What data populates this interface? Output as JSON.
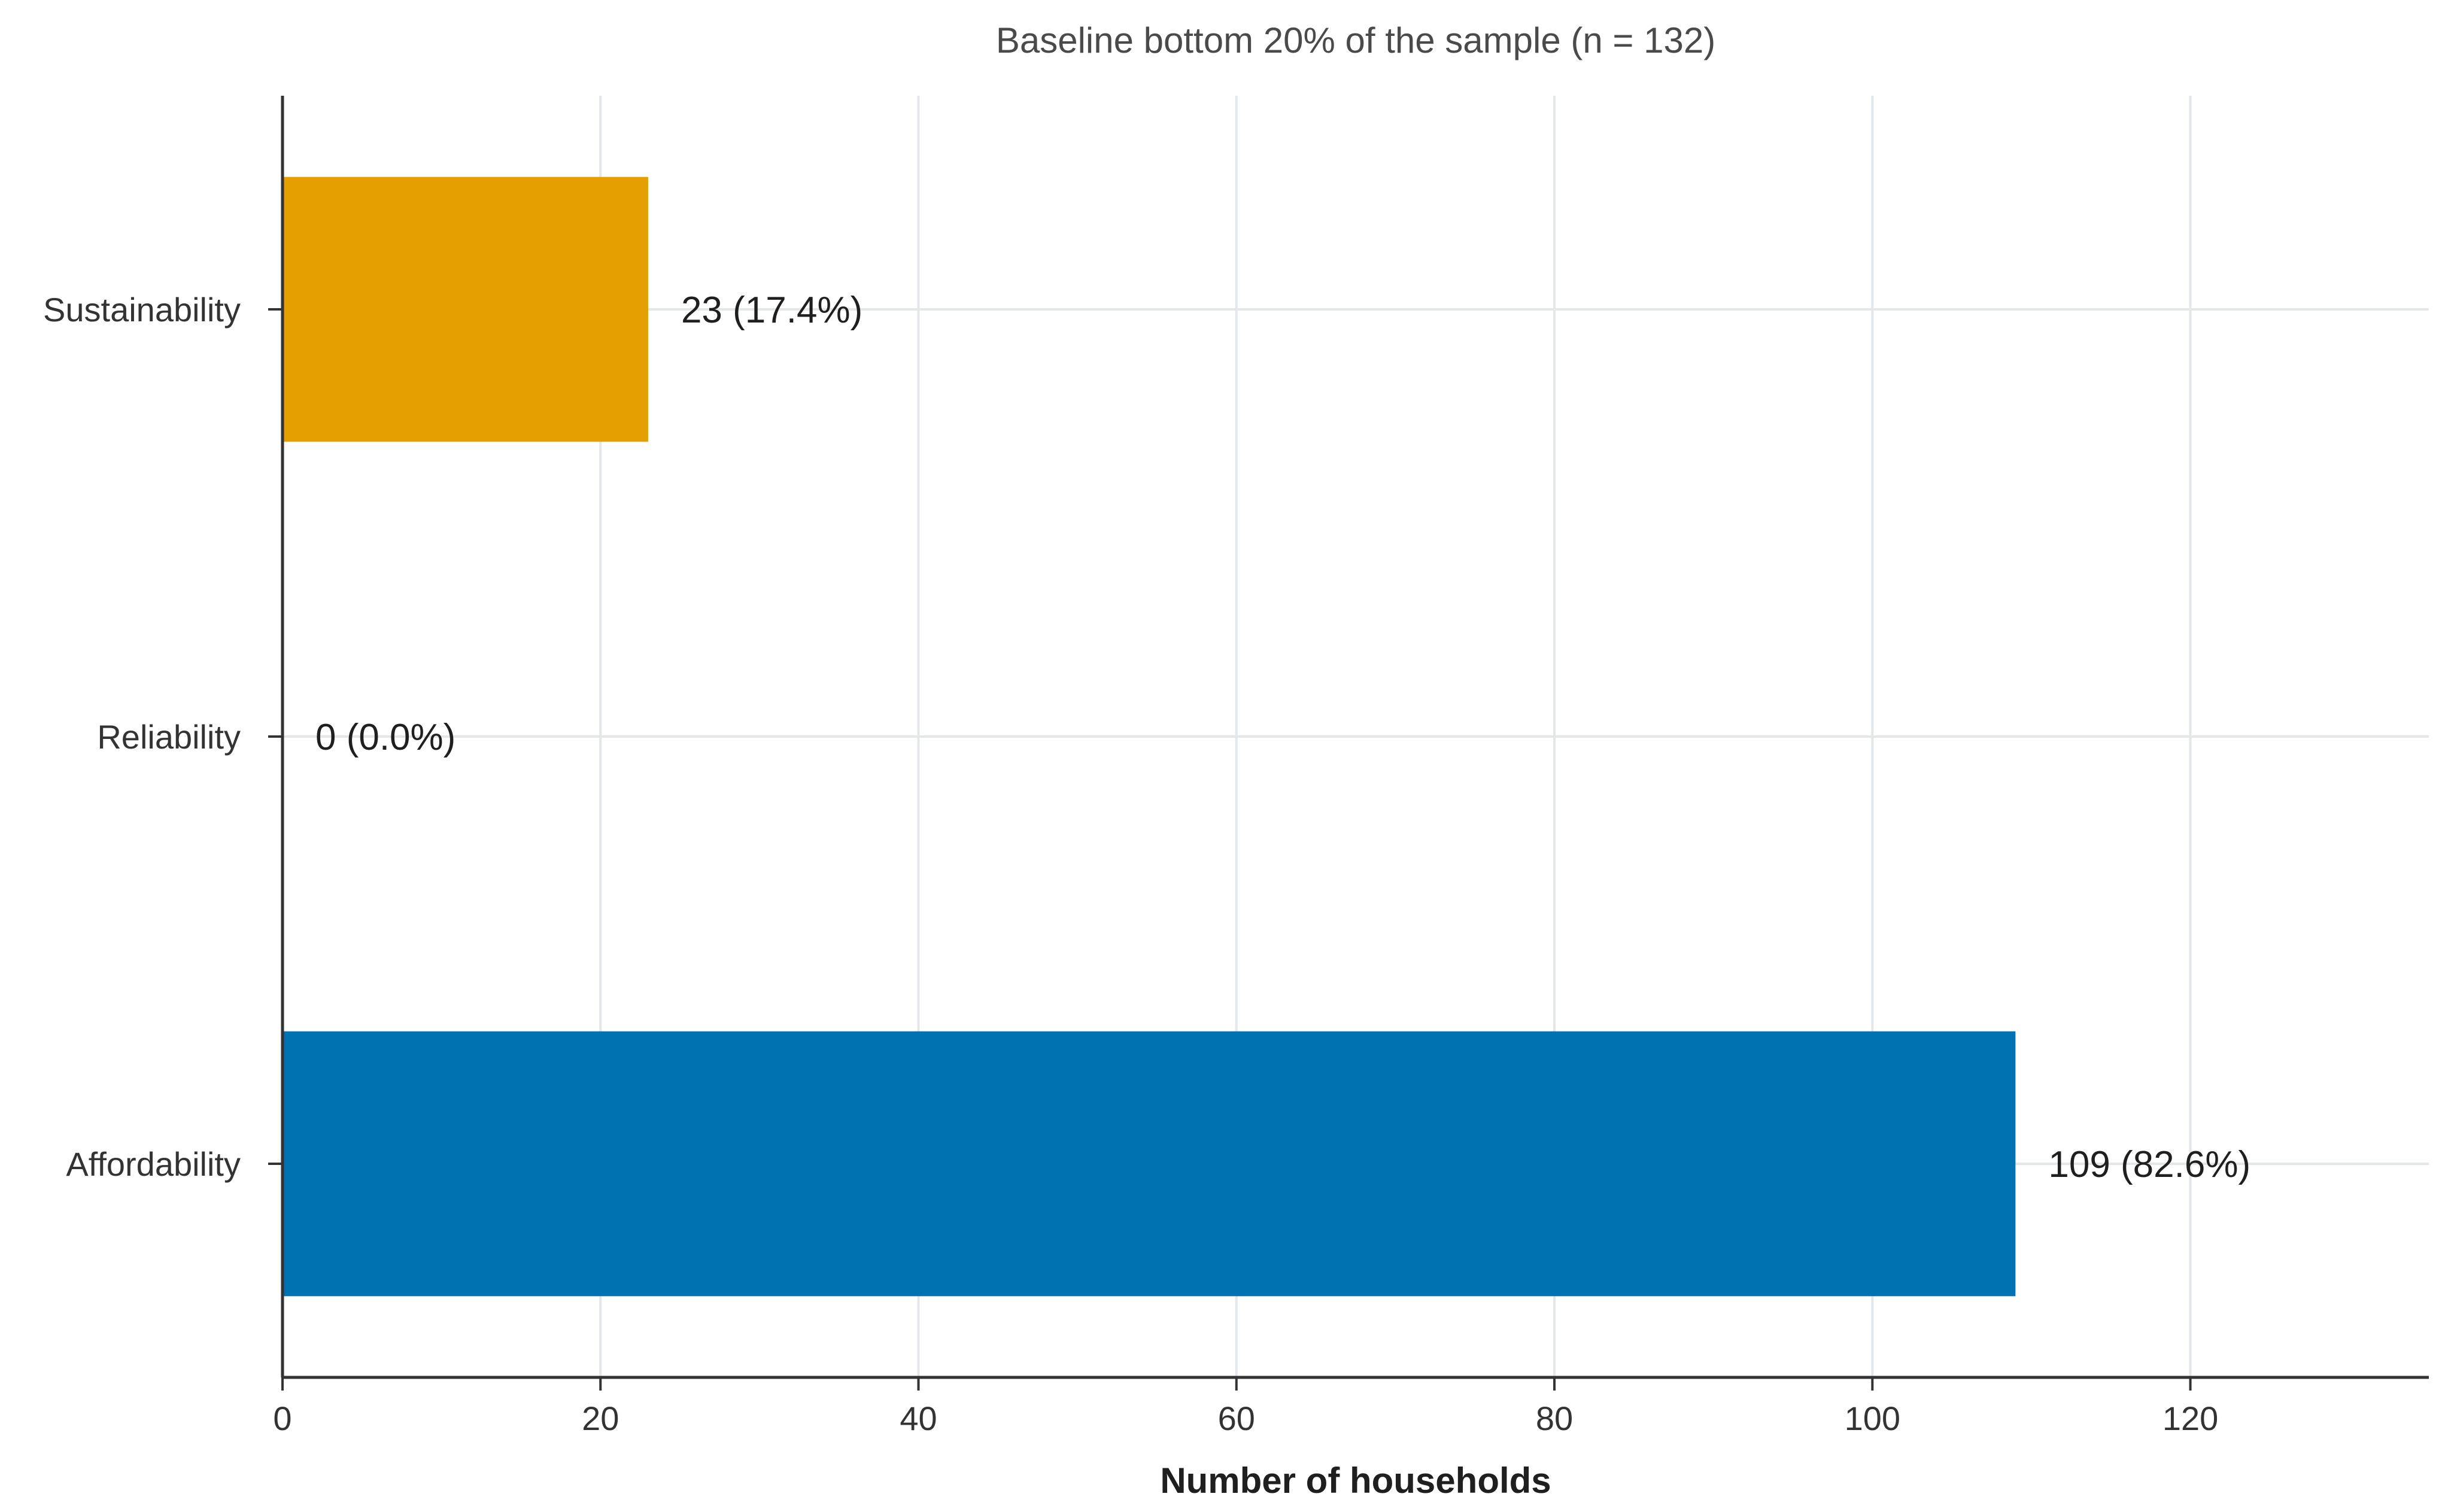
{
  "chart_data": {
    "type": "bar",
    "orientation": "horizontal",
    "title": "Baseline bottom 20% of the sample (n = 132)",
    "xlabel": "Number of households",
    "ylabel": "",
    "xlim": [
      0,
      135
    ],
    "xticks": [
      0,
      20,
      40,
      60,
      80,
      100,
      120
    ],
    "grid": true,
    "categories": [
      "Sustainability",
      "Reliability",
      "Affordability"
    ],
    "values": [
      23,
      0,
      109
    ],
    "data_labels": [
      "23 (17.4%)",
      "0 (0.0%)",
      "109 (82.6%)"
    ],
    "colors": [
      "#e69f00",
      "#009e73",
      "#0072b2"
    ]
  }
}
